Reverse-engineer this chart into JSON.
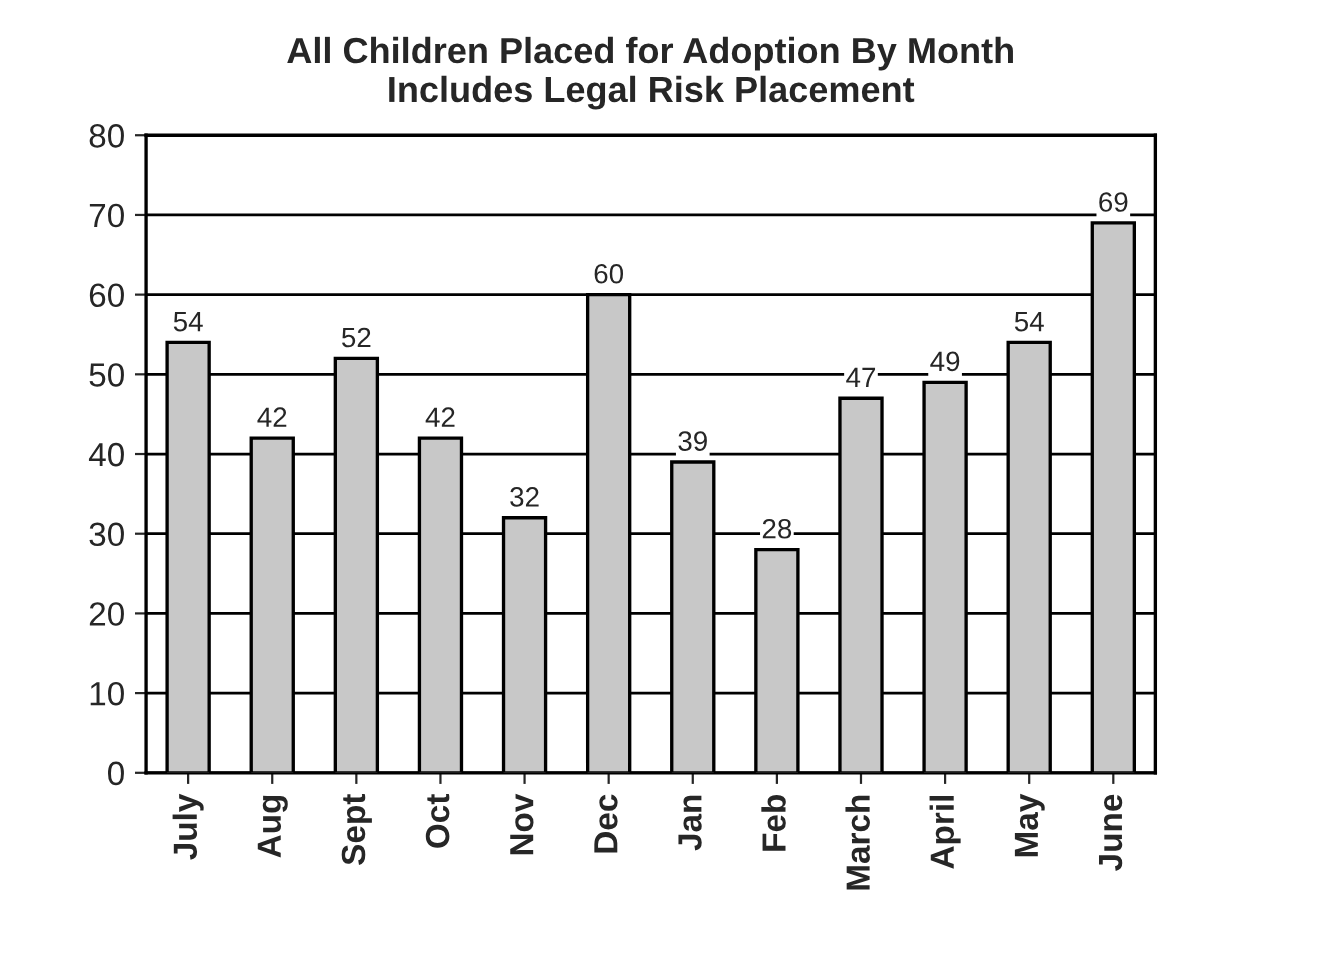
{
  "chart_data": {
    "type": "bar",
    "title": "All Children Placed for Adoption By Month\nIncludes Legal Risk Placement",
    "categories": [
      "July",
      "Aug",
      "Sept",
      "Oct",
      "Nov",
      "Dec",
      "Jan",
      "Feb",
      "March",
      "April",
      "May",
      "June"
    ],
    "values": [
      54,
      42,
      52,
      42,
      32,
      60,
      39,
      28,
      47,
      49,
      54,
      69
    ],
    "color": "#c8c8c8",
    "ylim": [
      0,
      80
    ],
    "yticks": [
      0,
      10,
      20,
      30,
      40,
      50,
      60,
      70,
      80
    ],
    "grid": "y",
    "data_labels": true
  }
}
